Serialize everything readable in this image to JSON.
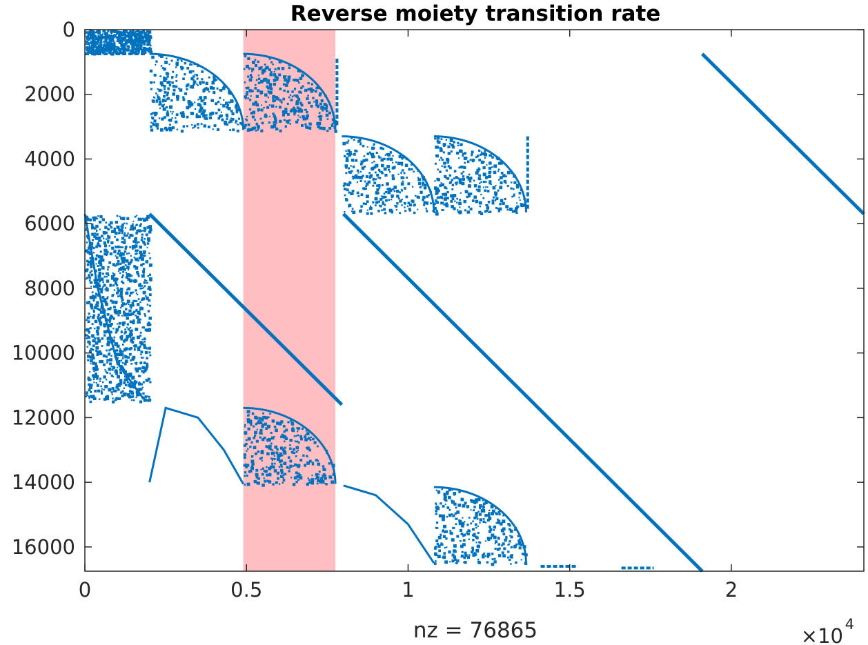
{
  "chart_data": {
    "type": "scatter",
    "title": "Reverse moiety transition rate",
    "xlabel": "nz = 76865",
    "ylabel": "",
    "x_exponent_base": "×10",
    "x_exponent_power": "4",
    "xlim": [
      0,
      24100
    ],
    "ylim": [
      16750,
      0
    ],
    "y_reversed": true,
    "grid": false,
    "marker_color": "#0072BD",
    "highlight_color": "#FFBFC2",
    "x_ticks": [
      {
        "value": 0,
        "label": "0"
      },
      {
        "value": 5000,
        "label": "0.5"
      },
      {
        "value": 10000,
        "label": "1"
      },
      {
        "value": 15000,
        "label": "1.5"
      },
      {
        "value": 20000,
        "label": "2"
      }
    ],
    "y_ticks": [
      {
        "value": 0,
        "label": "0"
      },
      {
        "value": 2000,
        "label": "2000"
      },
      {
        "value": 4000,
        "label": "4000"
      },
      {
        "value": 6000,
        "label": "6000"
      },
      {
        "value": 8000,
        "label": "8000"
      },
      {
        "value": 10000,
        "label": "10000"
      },
      {
        "value": 12000,
        "label": "12000"
      },
      {
        "value": 14000,
        "label": "14000"
      },
      {
        "value": 16000,
        "label": "16000"
      }
    ],
    "highlight_band": {
      "x_start": 4900,
      "x_end": 7750
    },
    "diagonals": [
      {
        "x1": 19100,
        "y1": 750,
        "x2": 24100,
        "y2": 5700
      },
      {
        "x1": 2000,
        "y1": 5700,
        "x2": 7950,
        "y2": 11600
      },
      {
        "x1": 8000,
        "y1": 5700,
        "x2": 19100,
        "y2": 16750
      }
    ],
    "curves": [
      {
        "points": [
          [
            2000,
            14000
          ],
          [
            2500,
            11700
          ],
          [
            3500,
            12000
          ],
          [
            4300,
            13000
          ],
          [
            4900,
            14050
          ]
        ]
      },
      {
        "points": [
          [
            8000,
            14100
          ],
          [
            9000,
            14400
          ],
          [
            10000,
            15300
          ],
          [
            10800,
            16500
          ]
        ]
      },
      {
        "points": [
          [
            0,
            5700
          ],
          [
            400,
            8000
          ],
          [
            1000,
            10300
          ],
          [
            1800,
            11400
          ],
          [
            2000,
            11500
          ]
        ]
      }
    ],
    "quarter_blocks": [
      {
        "x0": 2000,
        "x1": 4900,
        "y0": 750,
        "y1": 3100
      },
      {
        "x0": 4900,
        "x1": 7750,
        "y0": 750,
        "y1": 3100
      },
      {
        "x0": 7950,
        "x1": 10800,
        "y0": 3300,
        "y1": 5650
      },
      {
        "x0": 10800,
        "x1": 13650,
        "y0": 3300,
        "y1": 5650
      },
      {
        "x0": 4900,
        "x1": 7750,
        "y0": 11700,
        "y1": 14050
      },
      {
        "x0": 10800,
        "x1": 13650,
        "y0": 14150,
        "y1": 16500
      }
    ],
    "dense_blocks": [
      {
        "x0": 0,
        "x1": 1000,
        "y0": 0,
        "y1": 700
      },
      {
        "x0": 1000,
        "x1": 2000,
        "y0": 0,
        "y1": 700
      },
      {
        "x0": 0,
        "x1": 1000,
        "y0": 5700,
        "y1": 8600
      },
      {
        "x0": 1000,
        "x1": 2000,
        "y0": 5700,
        "y1": 8600
      },
      {
        "x0": 0,
        "x1": 1000,
        "y0": 8600,
        "y1": 11500
      },
      {
        "x0": 1000,
        "x1": 2000,
        "y0": 8600,
        "y1": 11500
      }
    ],
    "vertical_segments": [
      {
        "x": 7800,
        "y0": 900,
        "y1": 3000
      },
      {
        "x": 13700,
        "y0": 3300,
        "y1": 5600
      }
    ],
    "horizontal_segments": [
      {
        "y": 750,
        "x0": 0,
        "x1": 1900
      },
      {
        "y": 16600,
        "x0": 14100,
        "x1": 15200
      },
      {
        "y": 16650,
        "x0": 16600,
        "x1": 17600
      }
    ]
  }
}
